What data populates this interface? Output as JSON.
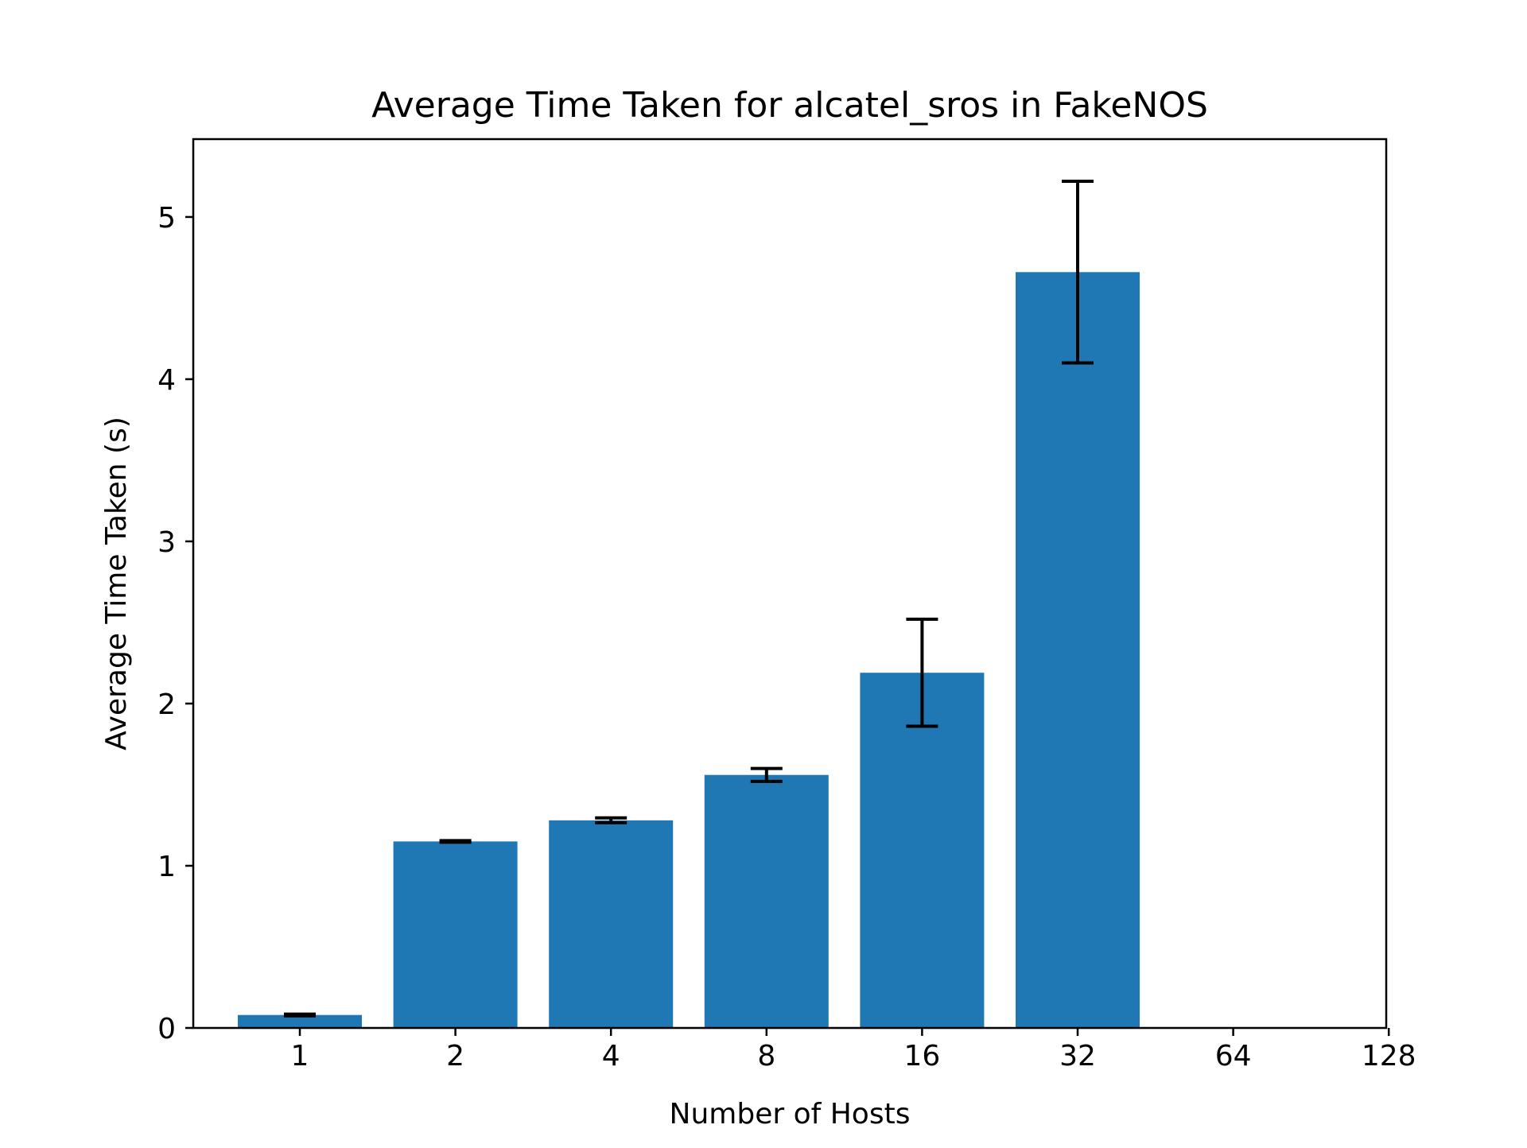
{
  "chart_data": {
    "type": "bar",
    "title": "Average Time Taken for alcatel_sros in FakeNOS",
    "xlabel": "Number of Hosts",
    "ylabel": "Average Time Taken (s)",
    "categories": [
      "1",
      "2",
      "4",
      "8",
      "16",
      "32",
      "64",
      "128"
    ],
    "values": [
      0.08,
      1.15,
      1.28,
      1.56,
      2.19,
      4.66,
      null,
      null
    ],
    "error": [
      0.005,
      0.005,
      0.015,
      0.04,
      0.33,
      0.56,
      null,
      null
    ],
    "ylim": [
      0,
      5.48
    ],
    "yticks": [
      0,
      1,
      2,
      3,
      4,
      5
    ],
    "grid": false,
    "colors": {
      "bar": "#1f77b4",
      "errorbar": "#000000",
      "axes": "#000000"
    }
  }
}
